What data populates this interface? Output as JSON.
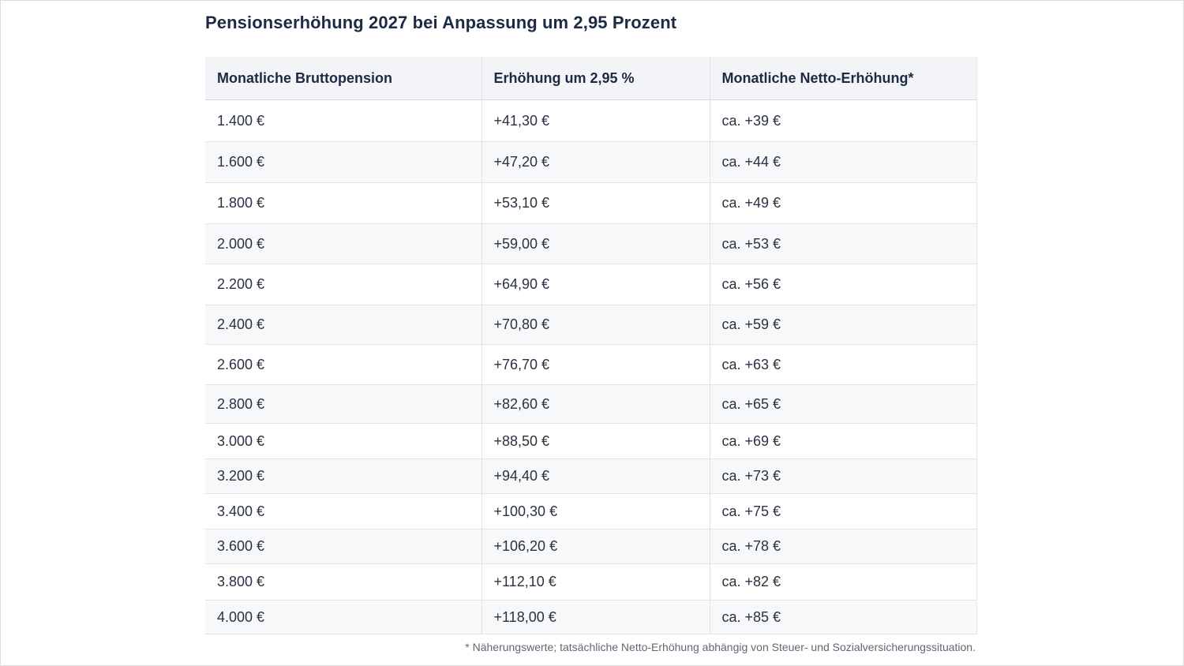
{
  "title": "Pensionserhöhung 2027 bei Anpassung um 2,95 Prozent",
  "table": {
    "headers": [
      "Monatliche Bruttopension",
      "Erhöhung um 2,95 %",
      "Monatliche Netto-Erhöhung*"
    ],
    "rows": [
      [
        "1.400 €",
        "+41,30 €",
        "ca. +39 €"
      ],
      [
        "1.600 €",
        "+47,20 €",
        "ca. +44 €"
      ],
      [
        "1.800 €",
        "+53,10 €",
        "ca. +49 €"
      ],
      [
        "2.000 €",
        "+59,00 €",
        "ca. +53 €"
      ],
      [
        "2.200 €",
        "+64,90 €",
        "ca. +56 €"
      ],
      [
        "2.400 €",
        "+70,80 €",
        "ca. +59 €"
      ],
      [
        "2.600 €",
        "+76,70 €",
        "ca. +63 €"
      ],
      [
        "2.800 €",
        "+82,60 €",
        "ca. +65 €"
      ],
      [
        "3.000 €",
        "+88,50 €",
        "ca. +69 €"
      ],
      [
        "3.200 €",
        "+94,40 €",
        "ca. +73 €"
      ],
      [
        "3.400 €",
        "+100,30 €",
        "ca. +75 €"
      ],
      [
        "3.600 €",
        "+106,20 €",
        "ca. +78 €"
      ],
      [
        "3.800 €",
        "+112,10 €",
        "ca. +82 €"
      ],
      [
        "4.000 €",
        "+118,00 €",
        "ca. +85 €"
      ]
    ]
  },
  "footnote": "* Näherungswerte; tatsächliche Netto-Erhöhung abhängig von Steuer- und Sozialversicherungssituation."
}
